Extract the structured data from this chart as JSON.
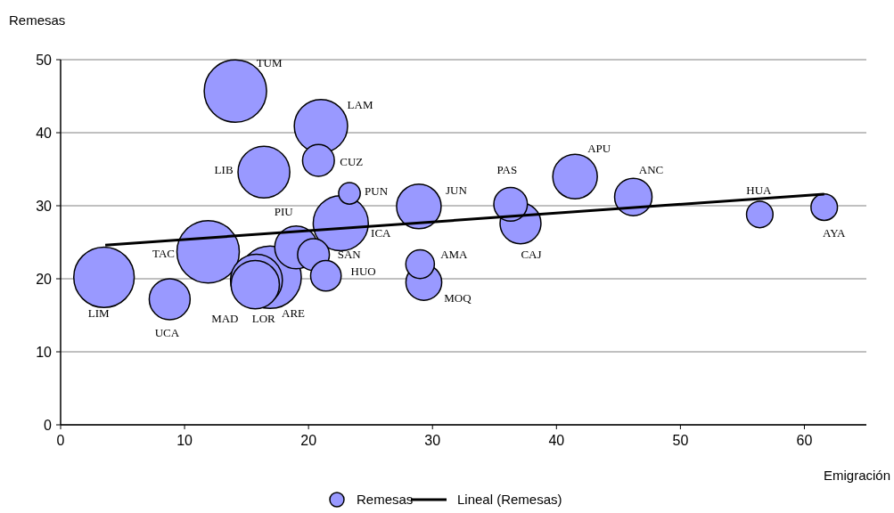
{
  "chart_data": {
    "type": "bubble",
    "xlabel": "Emigración",
    "ylabel": "Remesas",
    "xlim": [
      0,
      65
    ],
    "ylim": [
      0,
      50
    ],
    "xticks": [
      0,
      10,
      20,
      30,
      40,
      50,
      60
    ],
    "yticks": [
      0,
      10,
      20,
      30,
      40,
      50
    ],
    "grid": "y",
    "legend": "bottom",
    "series": [
      {
        "name": "Remesas",
        "color": "#9999ff",
        "x": [
          3.5,
          8.8,
          11.9,
          14.1,
          16.4,
          16.9,
          15.8,
          15.7,
          19.0,
          20.4,
          21.4,
          22.6,
          23.3,
          20.8,
          21.0,
          28.9,
          29.0,
          29.3,
          36.3,
          37.1,
          41.5,
          46.2,
          56.4,
          61.6
        ],
        "values": [
          20.2,
          17.2,
          23.7,
          45.7,
          34.6,
          20.2,
          19.8,
          19.2,
          24.3,
          23.3,
          20.4,
          27.6,
          31.7,
          36.2,
          40.9,
          29.9,
          22.0,
          19.5,
          30.2,
          27.6,
          34.0,
          31.2,
          28.8,
          29.8
        ],
        "sizes": [
          0.94,
          0.43,
          1,
          1,
          0.69,
          1,
          0.69,
          0.6,
          0.47,
          0.26,
          0.24,
          0.78,
          0.12,
          0.26,
          0.73,
          0.51,
          0.21,
          0.33,
          0.29,
          0.43,
          0.51,
          0.36,
          0.18,
          0.18
        ]
      },
      {
        "name": "Lineal (Remesas)",
        "type": "line",
        "color": "#000000",
        "x": [
          3.6,
          61.6
        ],
        "values": [
          24.6,
          31.6
        ]
      }
    ],
    "annotations": [
      {
        "text": "LIM",
        "x": 3.5,
        "y": 20.2
      },
      {
        "text": "UCA",
        "x": 8.8,
        "y": 17.2
      },
      {
        "text": "TAC",
        "x": 11.9,
        "y": 23.7
      },
      {
        "text": "TUM",
        "x": 14.1,
        "y": 45.7
      },
      {
        "text": "LIB",
        "x": 16.4,
        "y": 34.6
      },
      {
        "text": "ARE",
        "x": 16.9,
        "y": 20.2
      },
      {
        "text": "LOR",
        "x": 15.8,
        "y": 19.8
      },
      {
        "text": "MAD",
        "x": 15.7,
        "y": 19.2
      },
      {
        "text": "PIU",
        "x": 19.0,
        "y": 24.3
      },
      {
        "text": "SAN",
        "x": 20.4,
        "y": 23.3
      },
      {
        "text": "HUO",
        "x": 21.4,
        "y": 20.4
      },
      {
        "text": "ICA",
        "x": 22.6,
        "y": 27.6
      },
      {
        "text": "PUN",
        "x": 23.3,
        "y": 31.7
      },
      {
        "text": "CUZ",
        "x": 20.8,
        "y": 36.2
      },
      {
        "text": "LAM",
        "x": 21.0,
        "y": 40.9
      },
      {
        "text": "JUN",
        "x": 28.9,
        "y": 29.9
      },
      {
        "text": "AMA",
        "x": 29.0,
        "y": 22.0
      },
      {
        "text": "MOQ",
        "x": 29.3,
        "y": 19.5
      },
      {
        "text": "PAS",
        "x": 36.3,
        "y": 30.2
      },
      {
        "text": "CAJ",
        "x": 37.1,
        "y": 27.6
      },
      {
        "text": "APU",
        "x": 41.5,
        "y": 34.0
      },
      {
        "text": "ANC",
        "x": 46.2,
        "y": 31.2
      },
      {
        "text": "HUA",
        "x": 56.4,
        "y": 28.8
      },
      {
        "text": "AYA",
        "x": 61.6,
        "y": 29.8
      }
    ]
  }
}
